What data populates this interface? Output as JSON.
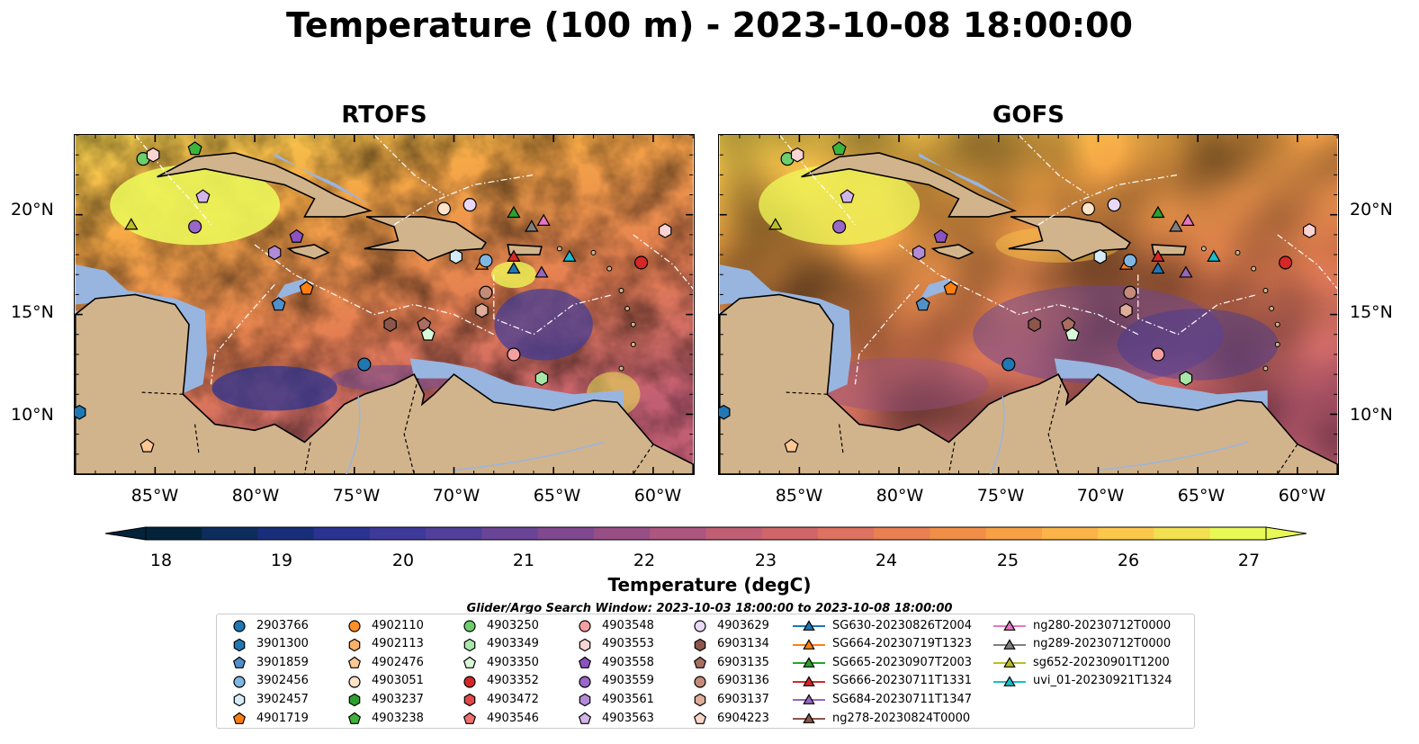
{
  "title": "Temperature (100 m) - 2023-10-08 18:00:00",
  "panels": [
    {
      "name": "RTOFS"
    },
    {
      "name": "GOFS"
    }
  ],
  "lat_labels": [
    "20°N",
    "15°N",
    "10°N"
  ],
  "lon_labels": [
    "85°W",
    "80°W",
    "75°W",
    "70°W",
    "65°W",
    "60°W"
  ],
  "colorbar": {
    "label": "Temperature (degC)",
    "ticks": [
      "18",
      "19",
      "20",
      "21",
      "22",
      "23",
      "24",
      "25",
      "26",
      "27"
    ],
    "colors": [
      "#03233a",
      "#0d2d5e",
      "#172f7a",
      "#2b3391",
      "#3d3a9a",
      "#513f99",
      "#6a4597",
      "#80498f",
      "#974f86",
      "#ac5680",
      "#c05f74",
      "#d0666a",
      "#de7260",
      "#ea8052",
      "#f18e47",
      "#f7a144",
      "#fab447",
      "#fbc84c",
      "#f3e050",
      "#e8f855"
    ]
  },
  "search_window": "Glider/Argo Search Window: 2023-10-03 18:00:00 to 2023-10-08 18:00:00",
  "colors": {
    "land": "#d2b48c",
    "shelf": "#98b5e0",
    "deep": "#06243a"
  },
  "legend": [
    {
      "label": "2903766",
      "marker": "circle",
      "color": "#1f77b4"
    },
    {
      "label": "3901300",
      "marker": "hexagon",
      "color": "#1f77b4"
    },
    {
      "label": "3901859",
      "marker": "pentagon",
      "color": "#4f90c9"
    },
    {
      "label": "3902456",
      "marker": "circle",
      "color": "#7fb7e3"
    },
    {
      "label": "3902457",
      "marker": "hexagon",
      "color": "#d5ecf7"
    },
    {
      "label": "4901719",
      "marker": "pentagon",
      "color": "#ff7f0e"
    },
    {
      "label": "4902110",
      "marker": "circle",
      "color": "#ff8f2a"
    },
    {
      "label": "4902113",
      "marker": "hexagon",
      "color": "#ffb26b"
    },
    {
      "label": "4902476",
      "marker": "pentagon",
      "color": "#ffc794"
    },
    {
      "label": "4903051",
      "marker": "circle",
      "color": "#ffe3c7"
    },
    {
      "label": "4903237",
      "marker": "hexagon",
      "color": "#2ca02c"
    },
    {
      "label": "4903238",
      "marker": "pentagon",
      "color": "#3cb43c"
    },
    {
      "label": "4903250",
      "marker": "circle",
      "color": "#6ccf6c"
    },
    {
      "label": "4903349",
      "marker": "hexagon",
      "color": "#a6e6a6"
    },
    {
      "label": "4903350",
      "marker": "pentagon",
      "color": "#d9f7d9"
    },
    {
      "label": "4903352",
      "marker": "circle",
      "color": "#d62728"
    },
    {
      "label": "4903472",
      "marker": "hexagon",
      "color": "#e04848"
    },
    {
      "label": "4903546",
      "marker": "pentagon",
      "color": "#f07070"
    },
    {
      "label": "4903548",
      "marker": "circle",
      "color": "#f5a0a0"
    },
    {
      "label": "4903553",
      "marker": "hexagon",
      "color": "#fad3d3"
    },
    {
      "label": "4903558",
      "marker": "pentagon",
      "color": "#8c52be"
    },
    {
      "label": "4903559",
      "marker": "circle",
      "color": "#9a66c8"
    },
    {
      "label": "4903561",
      "marker": "hexagon",
      "color": "#b28ad8"
    },
    {
      "label": "4903563",
      "marker": "pentagon",
      "color": "#d1b5ea"
    },
    {
      "label": "4903629",
      "marker": "circle",
      "color": "#ead8f7"
    },
    {
      "label": "6903134",
      "marker": "hexagon",
      "color": "#8c564b"
    },
    {
      "label": "6903135",
      "marker": "pentagon",
      "color": "#a86e60"
    },
    {
      "label": "6903136",
      "marker": "circle",
      "color": "#c48b7a"
    },
    {
      "label": "6903137",
      "marker": "hexagon",
      "color": "#e0ad9a"
    },
    {
      "label": "6904223",
      "marker": "pentagon",
      "color": "#f7d6c8"
    },
    {
      "label": "SG630-20230826T2004",
      "marker": "triangle-line",
      "color": "#1f77b4"
    },
    {
      "label": "SG664-20230719T1323",
      "marker": "triangle-line",
      "color": "#ff7f0e"
    },
    {
      "label": "SG665-20230907T2003",
      "marker": "triangle-line",
      "color": "#2ca02c"
    },
    {
      "label": "SG666-20230711T1331",
      "marker": "triangle-line",
      "color": "#d62728"
    },
    {
      "label": "SG684-20230711T1347",
      "marker": "triangle-line",
      "color": "#9467bd"
    },
    {
      "label": "ng278-20230824T0000",
      "marker": "triangle-line",
      "color": "#8c564b"
    },
    {
      "label": "ng280-20230712T0000",
      "marker": "triangle-line",
      "color": "#e377c2"
    },
    {
      "label": "ng289-20230712T0000",
      "marker": "triangle-line",
      "color": "#7f7f7f"
    },
    {
      "label": "sg652-20230901T1200",
      "marker": "triangle-line",
      "color": "#bcbd22"
    },
    {
      "label": "uvi_01-20230921T1324",
      "marker": "triangle-line",
      "color": "#17becf"
    }
  ],
  "stations": [
    {
      "id": "4903250",
      "lon": -85.6,
      "lat": 22.8
    },
    {
      "id": "4903238",
      "lon": -83.0,
      "lat": 23.3
    },
    {
      "id": "4903553",
      "lon": -85.1,
      "lat": 23.0
    },
    {
      "id": "4903563",
      "lon": -82.6,
      "lat": 20.9
    },
    {
      "id": "sg652-20230901T1200",
      "lon": -86.2,
      "lat": 19.5
    },
    {
      "id": "4903559",
      "lon": -83.0,
      "lat": 19.4
    },
    {
      "id": "4903561",
      "lon": -79.0,
      "lat": 18.1
    },
    {
      "id": "4903558",
      "lon": -77.9,
      "lat": 18.9
    },
    {
      "id": "4901719",
      "lon": -77.4,
      "lat": 16.3
    },
    {
      "id": "3901859",
      "lon": -78.8,
      "lat": 15.5
    },
    {
      "id": "6903134",
      "lon": -73.2,
      "lat": 14.5
    },
    {
      "id": "6903135",
      "lon": -71.5,
      "lat": 14.5
    },
    {
      "id": "4903350",
      "lon": -71.3,
      "lat": 14.0
    },
    {
      "id": "2903766",
      "lon": -74.5,
      "lat": 12.5
    },
    {
      "id": "4903051",
      "lon": -70.5,
      "lat": 20.3
    },
    {
      "id": "4903629",
      "lon": -69.2,
      "lat": 20.5
    },
    {
      "id": "3902457",
      "lon": -69.9,
      "lat": 17.9
    },
    {
      "id": "SG664-20230719T1323",
      "lon": -68.6,
      "lat": 17.5
    },
    {
      "id": "3902456",
      "lon": -68.4,
      "lat": 17.7
    },
    {
      "id": "SG665-20230907T2003",
      "lon": -67.0,
      "lat": 20.1
    },
    {
      "id": "ng289-20230712T0000",
      "lon": -66.1,
      "lat": 19.4
    },
    {
      "id": "ng280-20230712T0000",
      "lon": -65.5,
      "lat": 19.7
    },
    {
      "id": "SG666-20230711T1331",
      "lon": -67.0,
      "lat": 17.9
    },
    {
      "id": "SG630-20230826T2004",
      "lon": -67.0,
      "lat": 17.3
    },
    {
      "id": "SG684-20230711T1347",
      "lon": -65.6,
      "lat": 17.1
    },
    {
      "id": "uvi_01-20230921T1324",
      "lon": -64.2,
      "lat": 17.9
    },
    {
      "id": "4903352",
      "lon": -60.6,
      "lat": 17.6
    },
    {
      "id": "4903553",
      "lon": -59.4,
      "lat": 19.2
    },
    {
      "id": "6903136",
      "lon": -68.4,
      "lat": 16.1
    },
    {
      "id": "6903137",
      "lon": -68.6,
      "lat": 15.2
    },
    {
      "id": "4903548",
      "lon": -67.0,
      "lat": 13.0
    },
    {
      "id": "4903349",
      "lon": -65.6,
      "lat": 11.8
    },
    {
      "id": "3901300",
      "lon": -88.8,
      "lat": 10.1
    },
    {
      "id": "4902476",
      "lon": -85.4,
      "lat": 8.4
    }
  ]
}
